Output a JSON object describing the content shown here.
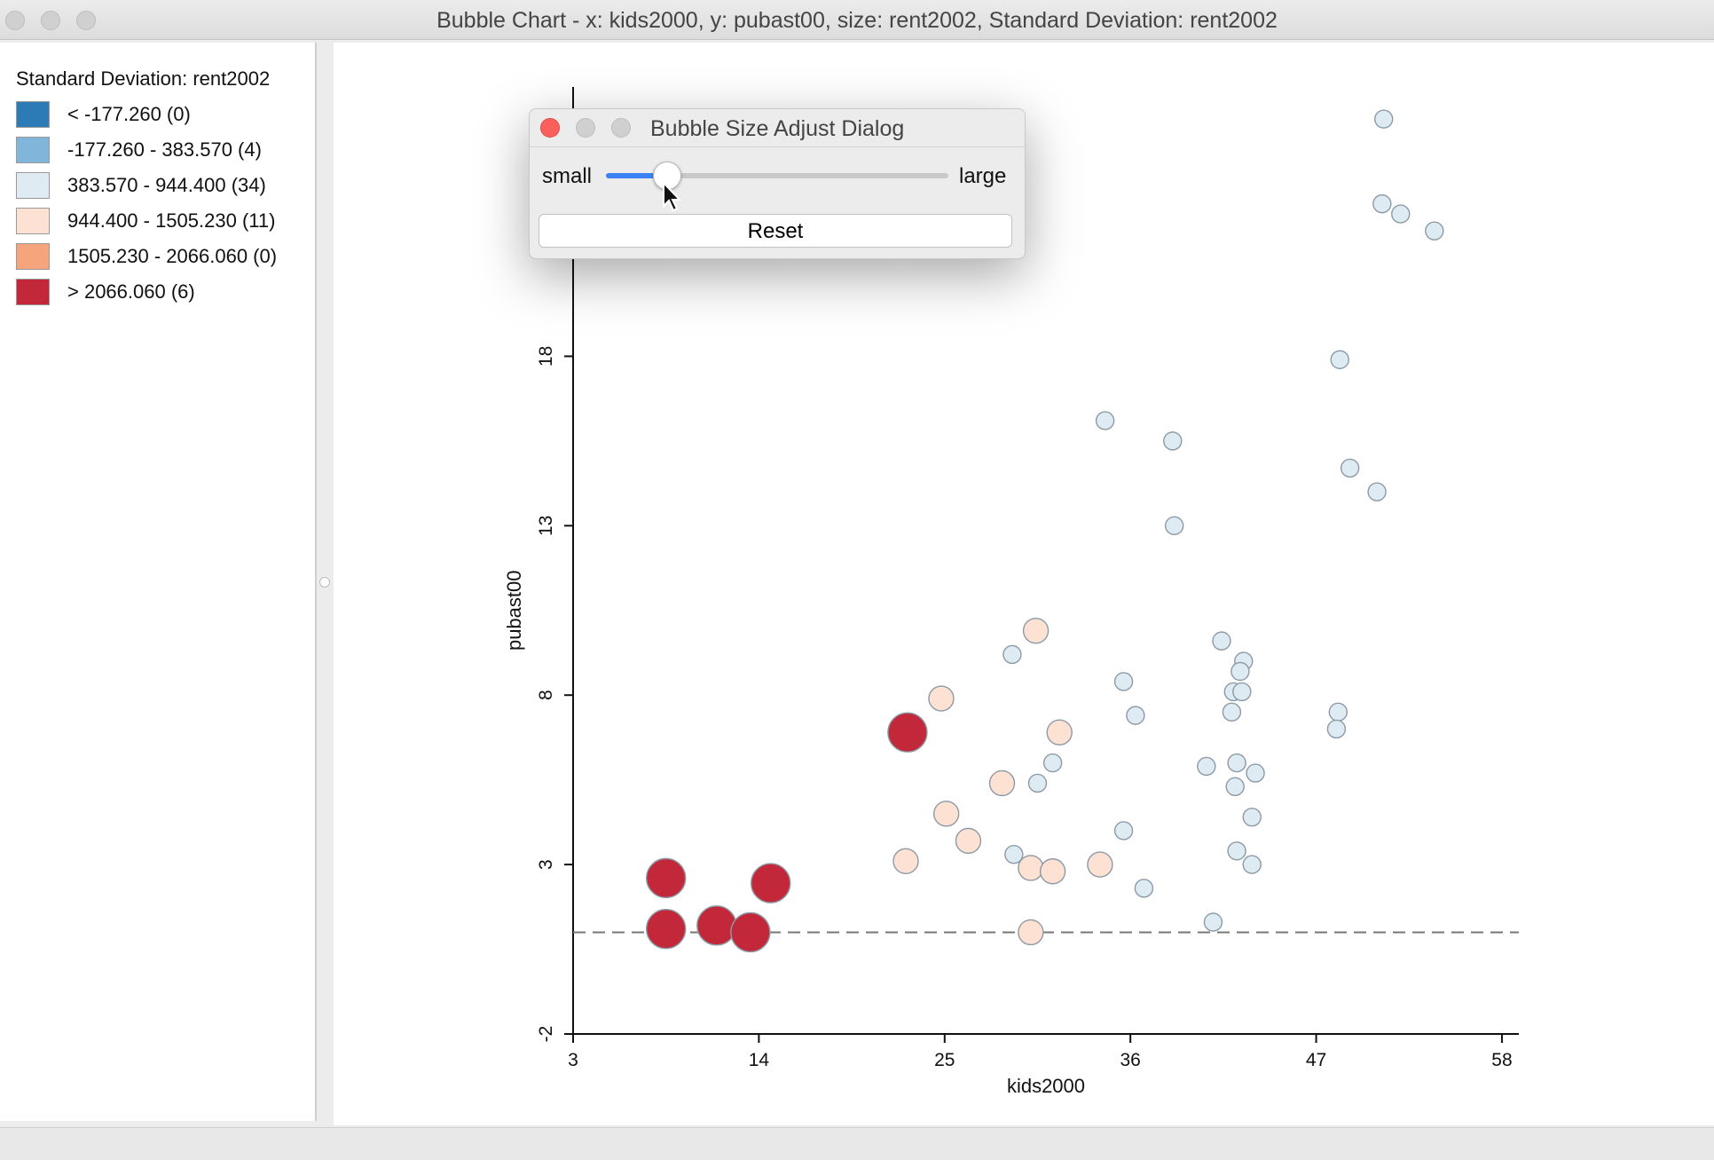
{
  "window": {
    "title": "Bubble Chart - x: kids2000, y: pubast00, size: rent2002, Standard Deviation: rent2002"
  },
  "legend": {
    "title": "Standard Deviation: rent2002",
    "items": [
      {
        "label": "< -177.260 (0)",
        "color": "#2c7bb6"
      },
      {
        "label": "-177.260 - 383.570 (4)",
        "color": "#7fb6da"
      },
      {
        "label": "383.570 - 944.400 (34)",
        "color": "#deebf2"
      },
      {
        "label": "944.400 - 1505.230 (11)",
        "color": "#fde2d3"
      },
      {
        "label": "1505.230 - 2066.060 (0)",
        "color": "#f5a47c"
      },
      {
        "label": "> 2066.060 (6)",
        "color": "#c2283a"
      }
    ]
  },
  "dialog": {
    "title": "Bubble Size Adjust Dialog",
    "small_label": "small",
    "large_label": "large",
    "reset_label": "Reset",
    "slider_value": 0.18
  },
  "chart_data": {
    "type": "scatter",
    "title": "",
    "xlabel": "kids2000",
    "ylabel": "pubast00",
    "xlim": [
      3,
      59
    ],
    "ylim": [
      -2,
      26
    ],
    "xticks": [
      3,
      14,
      25,
      36,
      47,
      58
    ],
    "yticks": [
      -2,
      3,
      8,
      13,
      18
    ],
    "reference_line_y": 1.0,
    "series": [
      {
        "name": "> 2066.060",
        "color": "#c2283a",
        "size": "large",
        "points": [
          [
            8.5,
            2.6
          ],
          [
            8.5,
            1.1
          ],
          [
            11.5,
            1.2
          ],
          [
            13.5,
            1.0
          ],
          [
            14.7,
            2.45
          ],
          [
            22.8,
            6.9
          ]
        ]
      },
      {
        "name": "944.400 - 1505.230",
        "color": "#fde2d3",
        "size": "medium",
        "points": [
          [
            30.4,
            9.9
          ],
          [
            24.8,
            7.9
          ],
          [
            31.8,
            6.9
          ],
          [
            28.4,
            5.4
          ],
          [
            25.1,
            4.5
          ],
          [
            26.4,
            3.7
          ],
          [
            22.7,
            3.1
          ],
          [
            30.1,
            2.9
          ],
          [
            31.4,
            2.8
          ],
          [
            34.2,
            3.0
          ],
          [
            30.1,
            1.0
          ]
        ]
      },
      {
        "name": "383.570 - 944.400",
        "color": "#deebf2",
        "size": "small",
        "points": [
          [
            51.0,
            25.0
          ],
          [
            50.9,
            22.5
          ],
          [
            52.0,
            22.2
          ],
          [
            54.0,
            21.7
          ],
          [
            48.4,
            17.9
          ],
          [
            34.5,
            16.1
          ],
          [
            38.5,
            15.5
          ],
          [
            49.0,
            14.7
          ],
          [
            50.6,
            14.0
          ],
          [
            38.6,
            13.0
          ],
          [
            29.0,
            9.2
          ],
          [
            41.4,
            9.6
          ],
          [
            42.7,
            9.0
          ],
          [
            42.5,
            8.7
          ],
          [
            42.1,
            8.1
          ],
          [
            42.6,
            8.1
          ],
          [
            35.6,
            8.4
          ],
          [
            36.3,
            7.4
          ],
          [
            42.0,
            7.5
          ],
          [
            48.3,
            7.5
          ],
          [
            48.2,
            7.0
          ],
          [
            31.4,
            6.0
          ],
          [
            40.5,
            5.9
          ],
          [
            42.3,
            6.0
          ],
          [
            43.4,
            5.7
          ],
          [
            30.5,
            5.4
          ],
          [
            42.2,
            5.3
          ],
          [
            43.2,
            4.4
          ],
          [
            35.6,
            4.0
          ],
          [
            29.1,
            3.3
          ],
          [
            42.3,
            3.4
          ],
          [
            43.2,
            3.0
          ],
          [
            36.8,
            2.3
          ],
          [
            40.9,
            1.3
          ]
        ]
      }
    ]
  }
}
